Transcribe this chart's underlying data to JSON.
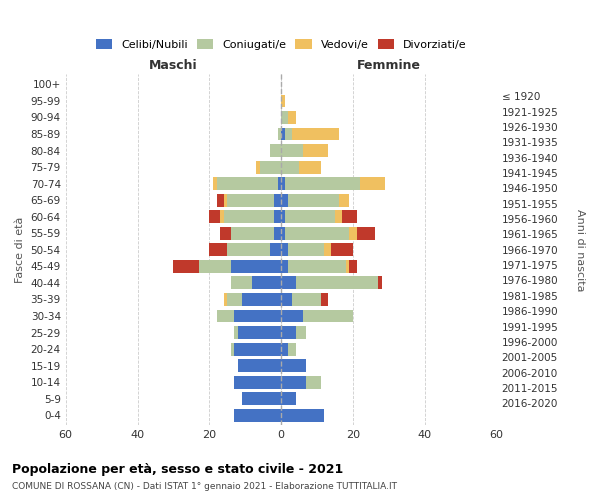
{
  "age_groups": [
    "0-4",
    "5-9",
    "10-14",
    "15-19",
    "20-24",
    "25-29",
    "30-34",
    "35-39",
    "40-44",
    "45-49",
    "50-54",
    "55-59",
    "60-64",
    "65-69",
    "70-74",
    "75-79",
    "80-84",
    "85-89",
    "90-94",
    "95-99",
    "100+"
  ],
  "birth_years": [
    "2016-2020",
    "2011-2015",
    "2006-2010",
    "2001-2005",
    "1996-2000",
    "1991-1995",
    "1986-1990",
    "1981-1985",
    "1976-1980",
    "1971-1975",
    "1966-1970",
    "1961-1965",
    "1956-1960",
    "1951-1955",
    "1946-1950",
    "1941-1945",
    "1936-1940",
    "1931-1935",
    "1926-1930",
    "1921-1925",
    "≤ 1920"
  ],
  "maschi": {
    "celibi": [
      13,
      11,
      13,
      12,
      13,
      12,
      13,
      11,
      8,
      14,
      3,
      2,
      2,
      2,
      1,
      0,
      0,
      0,
      0,
      0,
      0
    ],
    "coniugati": [
      0,
      0,
      0,
      0,
      1,
      1,
      5,
      4,
      6,
      9,
      12,
      12,
      14,
      13,
      17,
      6,
      3,
      1,
      0,
      0,
      0
    ],
    "vedovi": [
      0,
      0,
      0,
      0,
      0,
      0,
      0,
      1,
      0,
      0,
      0,
      0,
      1,
      1,
      1,
      1,
      0,
      0,
      0,
      0,
      0
    ],
    "divorziati": [
      0,
      0,
      0,
      0,
      0,
      0,
      0,
      0,
      0,
      7,
      5,
      3,
      3,
      2,
      0,
      0,
      0,
      0,
      0,
      0,
      0
    ]
  },
  "femmine": {
    "nubili": [
      12,
      4,
      7,
      7,
      2,
      4,
      6,
      3,
      4,
      2,
      2,
      1,
      1,
      2,
      1,
      0,
      0,
      1,
      0,
      0,
      0
    ],
    "coniugate": [
      0,
      0,
      4,
      0,
      2,
      3,
      14,
      8,
      23,
      16,
      10,
      18,
      14,
      14,
      21,
      5,
      6,
      2,
      2,
      0,
      0
    ],
    "vedove": [
      0,
      0,
      0,
      0,
      0,
      0,
      0,
      0,
      0,
      1,
      2,
      2,
      2,
      3,
      7,
      6,
      7,
      13,
      2,
      1,
      0
    ],
    "divorziate": [
      0,
      0,
      0,
      0,
      0,
      0,
      0,
      2,
      1,
      2,
      6,
      5,
      4,
      0,
      0,
      0,
      0,
      0,
      0,
      0,
      0
    ]
  },
  "colors": {
    "celibi": "#4472c4",
    "coniugati": "#b5c9a0",
    "vedovi": "#f0c060",
    "divorziati": "#c0392b"
  },
  "xlim": 60,
  "title": "Popolazione per età, sesso e stato civile - 2021",
  "subtitle": "COMUNE DI ROSSANA (CN) - Dati ISTAT 1° gennaio 2021 - Elaborazione TUTTITALIA.IT",
  "ylabel_left": "Fasce di età",
  "ylabel_right": "Anni di nascita",
  "xlabel_maschi": "Maschi",
  "xlabel_femmine": "Femmine"
}
